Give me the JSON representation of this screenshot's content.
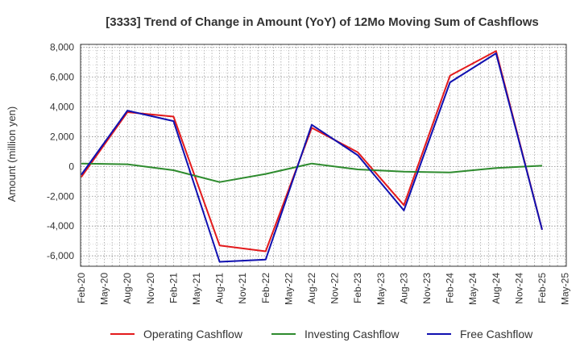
{
  "chart_data": {
    "type": "line",
    "title": "[3333]  Trend of Change in Amount (YoY) of 12Mo Moving Sum of Cashflows",
    "xlabel": "",
    "ylabel": "Amount (million yen)",
    "ylim": [
      -6700,
      8200
    ],
    "yticks": [
      8000,
      6000,
      4000,
      2000,
      0,
      -2000,
      -4000,
      -6000
    ],
    "ytick_labels": [
      "8,000",
      "6,000",
      "4,000",
      "2,000",
      "0",
      "-2,000",
      "-4,000",
      "-6,000"
    ],
    "categories": [
      "Feb-20",
      "May-20",
      "Aug-20",
      "Nov-20",
      "Feb-21",
      "May-21",
      "Aug-21",
      "Nov-21",
      "Feb-22",
      "May-22",
      "Aug-22",
      "Nov-22",
      "Feb-23",
      "May-23",
      "Aug-23",
      "Nov-23",
      "Feb-24",
      "May-24",
      "Aug-24",
      "Nov-24",
      "Feb-25",
      "May-25"
    ],
    "grid": true,
    "legend_position": "bottom",
    "series": [
      {
        "name": "Operating Cashflow",
        "color": "#e31a1c",
        "points": [
          [
            0,
            -700
          ],
          [
            2,
            3650
          ],
          [
            4,
            3350
          ],
          [
            6,
            -5300
          ],
          [
            8,
            -5700
          ],
          [
            10,
            2600
          ],
          [
            12,
            950
          ],
          [
            14,
            -2600
          ],
          [
            16,
            6100
          ],
          [
            18,
            7750
          ],
          [
            20,
            -4250
          ]
        ]
      },
      {
        "name": "Investing Cashflow",
        "color": "#2e8b2e",
        "points": [
          [
            0,
            200
          ],
          [
            2,
            150
          ],
          [
            4,
            -250
          ],
          [
            6,
            -1050
          ],
          [
            8,
            -500
          ],
          [
            10,
            200
          ],
          [
            12,
            -200
          ],
          [
            14,
            -350
          ],
          [
            16,
            -400
          ],
          [
            18,
            -100
          ],
          [
            20,
            50
          ]
        ]
      },
      {
        "name": "Free Cashflow",
        "color": "#1010b0",
        "points": [
          [
            0,
            -550
          ],
          [
            2,
            3750
          ],
          [
            4,
            3050
          ],
          [
            6,
            -6400
          ],
          [
            8,
            -6250
          ],
          [
            10,
            2800
          ],
          [
            12,
            750
          ],
          [
            14,
            -2950
          ],
          [
            16,
            5650
          ],
          [
            18,
            7600
          ],
          [
            20,
            -4250
          ]
        ]
      }
    ]
  }
}
